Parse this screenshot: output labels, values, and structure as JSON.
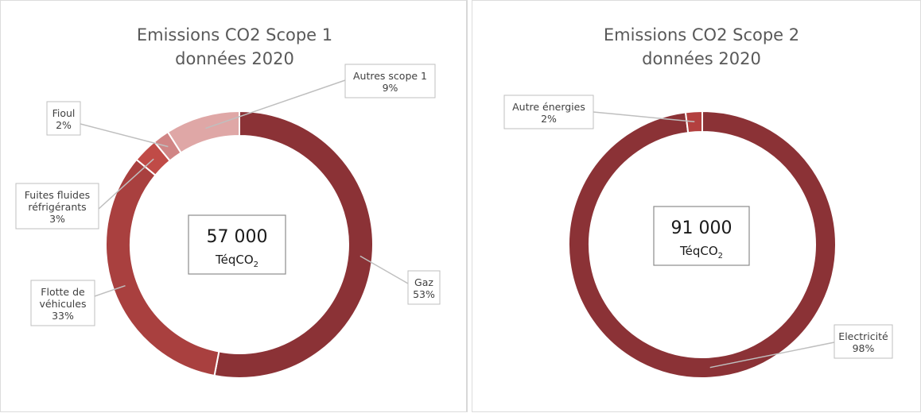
{
  "chart_data": [
    {
      "type": "pie",
      "variant": "donut",
      "title_lines": [
        "Emissions CO2 Scope 1",
        "données 2020"
      ],
      "center_value": "57 000",
      "center_unit": "TéqCO",
      "center_unit_sub": "2",
      "slices": [
        {
          "label": "Gaz",
          "value": 53,
          "percent_label": "53%",
          "color": "#8b3236"
        },
        {
          "label": "Flotte de véhicules",
          "label_lines": [
            "Flotte de",
            "véhicules"
          ],
          "value": 33,
          "percent_label": "33%",
          "color": "#a9403f"
        },
        {
          "label": "Fuites fluides réfrigérants",
          "label_lines": [
            "Fuites fluides",
            "réfrigérants"
          ],
          "value": 3,
          "percent_label": "3%",
          "color": "#c04b47"
        },
        {
          "label": "Fioul",
          "label_lines": [
            "Fioul"
          ],
          "value": 2,
          "percent_label": "2%",
          "color": "#d08585"
        },
        {
          "label": "Autres scope 1",
          "label_lines": [
            "Autres scope 1"
          ],
          "value": 9,
          "percent_label": "9%",
          "color": "#dfa7a6"
        }
      ]
    },
    {
      "type": "pie",
      "variant": "donut",
      "title_lines": [
        "Emissions CO2 Scope 2",
        "données 2020"
      ],
      "center_value": "91 000",
      "center_unit": "TéqCO",
      "center_unit_sub": "2",
      "slices": [
        {
          "label": "Electricité",
          "label_lines": [
            "Electricité"
          ],
          "value": 98,
          "percent_label": "98%",
          "color": "#8b3236"
        },
        {
          "label": "Autre énergies",
          "label_lines": [
            "Autre énergies"
          ],
          "value": 2,
          "percent_label": "2%",
          "color": "#b3403f"
        }
      ]
    }
  ]
}
